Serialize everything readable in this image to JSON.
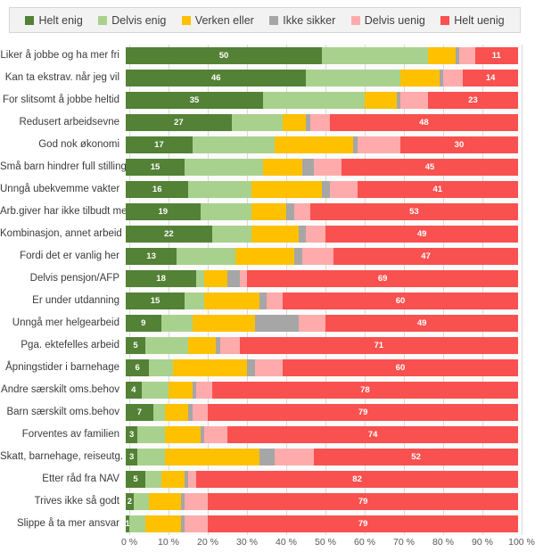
{
  "chart_data": {
    "type": "bar",
    "stacked": true,
    "orientation": "horizontal",
    "value_unit": "%",
    "xlim": [
      0,
      100
    ],
    "grid": "vertical",
    "legend_position": "top",
    "data_labels": "first and last series only",
    "x_ticks": [
      "0 %",
      "10 %",
      "20 %",
      "30 %",
      "40 %",
      "50 %",
      "60 %",
      "70 %",
      "80 %",
      "90 %",
      "100 %"
    ],
    "series": [
      {
        "name": "Helt enig",
        "color": "#538135"
      },
      {
        "name": "Delvis enig",
        "color": "#a9d18e"
      },
      {
        "name": "Verken eller",
        "color": "#ffc000"
      },
      {
        "name": "Ikke sikker",
        "color": "#a6a6a6"
      },
      {
        "name": "Delvis uenig",
        "color": "#ffabab"
      },
      {
        "name": "Helt uenig",
        "color": "#f9514f"
      }
    ],
    "categories": [
      "Liker å jobbe og  ha mer fri",
      "Kan ta ekstrav. når jeg vil",
      "For slitsomt å jobbe heltid",
      "Redusert arbeidsevne",
      "God nok økonomi",
      "Små barn hindrer full stilling",
      "Unngå ubekvemme vakter",
      "Arb.giver har ikke tilbudt mer",
      "Kombinasjon, annet arbeid",
      "Fordi det er vanlig her",
      "Delvis pensjon/AFP",
      "Er under utdanning",
      "Unngå mer helgearbeid",
      "Pga. ektefelles arbeid",
      "Åpningstider i barnehage",
      "Andre særskilt oms.behov",
      "Barn særskilt oms.behov",
      "Forventes av familien",
      "Skatt, barnehage, reiseutg.",
      "Etter råd fra NAV",
      "Trives ikke så godt",
      "Slippe å ta mer ansvar"
    ],
    "values": [
      [
        50,
        27,
        7,
        1,
        4,
        11
      ],
      [
        46,
        24,
        10,
        1,
        5,
        14
      ],
      [
        35,
        26,
        8,
        1,
        7,
        23
      ],
      [
        27,
        13,
        6,
        1,
        5,
        48
      ],
      [
        17,
        21,
        20,
        1,
        11,
        30
      ],
      [
        15,
        20,
        10,
        3,
        7,
        45
      ],
      [
        16,
        16,
        18,
        2,
        7,
        41
      ],
      [
        19,
        13,
        9,
        2,
        4,
        53
      ],
      [
        22,
        10,
        12,
        2,
        5,
        49
      ],
      [
        13,
        15,
        15,
        2,
        8,
        47
      ],
      [
        18,
        2,
        6,
        3,
        2,
        69
      ],
      [
        15,
        5,
        14,
        2,
        4,
        60
      ],
      [
        9,
        8,
        16,
        11,
        7,
        49
      ],
      [
        5,
        11,
        7,
        1,
        5,
        71
      ],
      [
        6,
        6,
        19,
        2,
        7,
        60
      ],
      [
        4,
        7,
        6,
        1,
        4,
        78
      ],
      [
        7,
        3,
        6,
        1,
        4,
        79
      ],
      [
        3,
        7,
        9,
        1,
        6,
        74
      ],
      [
        3,
        7,
        24,
        4,
        10,
        52
      ],
      [
        5,
        4,
        6,
        1,
        2,
        82
      ],
      [
        2,
        4,
        8,
        1,
        6,
        79
      ],
      [
        1,
        4,
        9,
        1,
        6,
        79
      ]
    ],
    "colors_meta": {
      "gridline": "#d9d9d9",
      "legend_background": "#f2f2f2",
      "legend_border": "#d6d6d6",
      "axis_text": "#595959",
      "category_text": "#3b3b3b",
      "data_label_text": "#ffffff"
    }
  }
}
